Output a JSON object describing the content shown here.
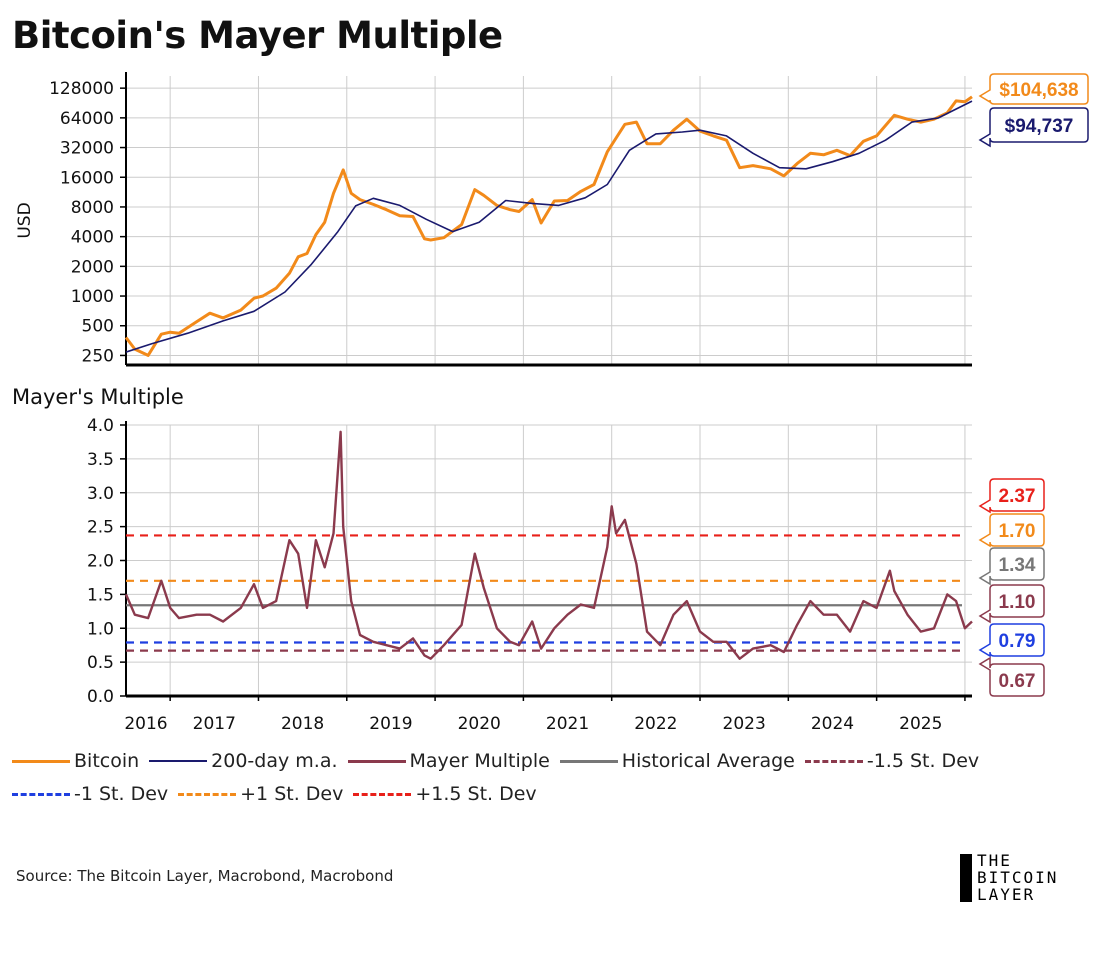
{
  "title": "Bitcoin's Mayer Multiple",
  "source": "Source: The Bitcoin Layer, Macrobond, Macrobond",
  "brand": {
    "line1": "THE",
    "line2": "BITCOIN",
    "line3": "LAYER"
  },
  "colors": {
    "bitcoin": "#f28a1a",
    "ma200": "#1a1a6e",
    "mayer": "#8b3a4d",
    "average": "#777777",
    "minus15": "#8b3a4d",
    "minus1": "#1f3fe0",
    "plus1": "#f28a1a",
    "plus15": "#e8201a",
    "grid": "#cccccc"
  },
  "legend": [
    {
      "label": "Bitcoin",
      "key": "bitcoin",
      "style": "solid"
    },
    {
      "label": "200-day m.a.",
      "key": "ma200",
      "style": "solid"
    },
    {
      "label": "Mayer Multiple",
      "key": "mayer",
      "style": "solid"
    },
    {
      "label": "Historical Average",
      "key": "average",
      "style": "solid"
    },
    {
      "label": "-1.5 St. Dev",
      "key": "minus15",
      "style": "dashed"
    },
    {
      "label": "-1 St. Dev",
      "key": "minus1",
      "style": "dashed"
    },
    {
      "label": "+1 St. Dev",
      "key": "plus1",
      "style": "dashed"
    },
    {
      "label": "+1.5 St. Dev",
      "key": "plus15",
      "style": "dashed"
    }
  ],
  "chart_data": [
    {
      "type": "line",
      "title": "",
      "ylabel": "USD",
      "yscale": "log",
      "ylim": [
        200,
        170000
      ],
      "xlim": [
        2015.5,
        2025.08
      ],
      "yticks": [
        250,
        500,
        1000,
        2000,
        4000,
        8000,
        16000,
        32000,
        64000,
        128000
      ],
      "ytick_labels": [
        "250",
        "500",
        "1000",
        "2000",
        "4000",
        "8000",
        "16000",
        "32000",
        "64000",
        "128000"
      ],
      "series": [
        {
          "name": "Bitcoin",
          "x": [
            2015.5,
            2015.6,
            2015.75,
            2015.9,
            2016.0,
            2016.1,
            2016.3,
            2016.45,
            2016.6,
            2016.8,
            2016.95,
            2017.05,
            2017.2,
            2017.35,
            2017.45,
            2017.55,
            2017.65,
            2017.75,
            2017.85,
            2017.96,
            2018.05,
            2018.15,
            2018.3,
            2018.45,
            2018.6,
            2018.75,
            2018.88,
            2018.95,
            2019.1,
            2019.3,
            2019.45,
            2019.55,
            2019.7,
            2019.85,
            2019.95,
            2020.1,
            2020.2,
            2020.35,
            2020.5,
            2020.65,
            2020.8,
            2020.95,
            2021.05,
            2021.15,
            2021.28,
            2021.4,
            2021.55,
            2021.7,
            2021.85,
            2022.0,
            2022.15,
            2022.3,
            2022.45,
            2022.6,
            2022.8,
            2022.95,
            2023.1,
            2023.25,
            2023.4,
            2023.55,
            2023.7,
            2023.85,
            2024.0,
            2024.2,
            2024.35,
            2024.5,
            2024.65,
            2024.8,
            2024.9,
            2025.0,
            2025.08
          ],
          "values": [
            380,
            290,
            250,
            410,
            430,
            420,
            550,
            670,
            600,
            720,
            950,
            1000,
            1200,
            1700,
            2500,
            2700,
            4200,
            5600,
            11000,
            19000,
            11000,
            9500,
            8500,
            7500,
            6500,
            6400,
            3800,
            3700,
            3900,
            5300,
            12000,
            10500,
            8300,
            7500,
            7200,
            9500,
            5500,
            9200,
            9300,
            11500,
            13500,
            29000,
            40000,
            55000,
            58000,
            35000,
            35000,
            48000,
            62000,
            47000,
            42000,
            38000,
            20000,
            21000,
            19500,
            16500,
            22000,
            28000,
            27000,
            30000,
            26500,
            37000,
            42000,
            68000,
            62000,
            58000,
            62000,
            72000,
            95000,
            93000,
            104638
          ]
        },
        {
          "name": "200-day m.a.",
          "x": [
            2015.5,
            2015.8,
            2016.2,
            2016.6,
            2016.95,
            2017.3,
            2017.6,
            2017.9,
            2018.1,
            2018.3,
            2018.6,
            2018.9,
            2019.2,
            2019.5,
            2019.8,
            2020.1,
            2020.4,
            2020.7,
            2020.95,
            2021.2,
            2021.5,
            2021.8,
            2022.0,
            2022.3,
            2022.6,
            2022.9,
            2023.2,
            2023.5,
            2023.8,
            2024.1,
            2024.4,
            2024.7,
            2025.08
          ],
          "values": [
            270,
            330,
            420,
            560,
            700,
            1100,
            2100,
            4500,
            8200,
            9800,
            8300,
            6000,
            4500,
            5600,
            9300,
            8700,
            8300,
            9900,
            13500,
            30000,
            44000,
            46000,
            48000,
            42000,
            28000,
            20000,
            19500,
            23000,
            28000,
            38000,
            58000,
            64000,
            94737
          ]
        }
      ],
      "annotations": [
        {
          "label": "$104,638",
          "series": "Bitcoin"
        },
        {
          "label": "$94,737",
          "series": "200-day m.a."
        }
      ]
    },
    {
      "type": "line",
      "title": "Mayer's Multiple",
      "ylim": [
        0.0,
        4.0
      ],
      "xlim": [
        2015.5,
        2025.08
      ],
      "yticks": [
        0.0,
        0.5,
        1.0,
        1.5,
        2.0,
        2.5,
        3.0,
        3.5,
        4.0
      ],
      "ytick_labels": [
        "0.0",
        "0.5",
        "1.0",
        "1.5",
        "2.0",
        "2.5",
        "3.0",
        "3.5",
        "4.0"
      ],
      "xticks": [
        2016,
        2017,
        2018,
        2019,
        2020,
        2021,
        2022,
        2023,
        2024,
        2025
      ],
      "xtick_labels": [
        "2016",
        "2017",
        "2018",
        "2019",
        "2020",
        "2021",
        "2022",
        "2023",
        "2024",
        "2025"
      ],
      "series": [
        {
          "name": "Mayer Multiple",
          "x": [
            2015.5,
            2015.6,
            2015.75,
            2015.9,
            2016.0,
            2016.1,
            2016.3,
            2016.45,
            2016.6,
            2016.8,
            2016.95,
            2017.05,
            2017.2,
            2017.35,
            2017.45,
            2017.55,
            2017.65,
            2017.75,
            2017.85,
            2017.93,
            2017.96,
            2018.05,
            2018.15,
            2018.3,
            2018.45,
            2018.6,
            2018.75,
            2018.88,
            2018.95,
            2019.1,
            2019.3,
            2019.45,
            2019.55,
            2019.7,
            2019.85,
            2019.95,
            2020.1,
            2020.2,
            2020.35,
            2020.5,
            2020.65,
            2020.8,
            2020.95,
            2021.0,
            2021.05,
            2021.15,
            2021.28,
            2021.4,
            2021.55,
            2021.7,
            2021.85,
            2022.0,
            2022.15,
            2022.3,
            2022.45,
            2022.6,
            2022.8,
            2022.95,
            2023.1,
            2023.25,
            2023.4,
            2023.55,
            2023.7,
            2023.85,
            2024.0,
            2024.15,
            2024.2,
            2024.35,
            2024.5,
            2024.65,
            2024.8,
            2024.9,
            2025.0,
            2025.08
          ],
          "values": [
            1.5,
            1.2,
            1.15,
            1.7,
            1.3,
            1.15,
            1.2,
            1.2,
            1.1,
            1.3,
            1.65,
            1.3,
            1.4,
            2.3,
            2.1,
            1.3,
            2.3,
            1.9,
            2.4,
            3.9,
            2.5,
            1.4,
            0.9,
            0.8,
            0.75,
            0.7,
            0.85,
            0.6,
            0.55,
            0.75,
            1.05,
            2.1,
            1.6,
            1.0,
            0.8,
            0.75,
            1.1,
            0.7,
            1.0,
            1.2,
            1.35,
            1.3,
            2.2,
            2.8,
            2.4,
            2.6,
            1.95,
            0.95,
            0.75,
            1.2,
            1.4,
            0.95,
            0.8,
            0.8,
            0.55,
            0.7,
            0.75,
            0.65,
            1.05,
            1.4,
            1.2,
            1.2,
            0.95,
            1.4,
            1.3,
            1.85,
            1.55,
            1.2,
            0.95,
            1.0,
            1.5,
            1.4,
            1.0,
            1.1
          ]
        },
        {
          "name": "Historical Average",
          "value": 1.34,
          "label": "1.34"
        },
        {
          "name": "-1.5 St. Dev",
          "value": 0.67,
          "label": "0.67"
        },
        {
          "name": "-1 St. Dev",
          "value": 0.79,
          "label": "0.79"
        },
        {
          "name": "+1 St. Dev",
          "value": 1.7,
          "label": "1.70"
        },
        {
          "name": "+1.5 St. Dev",
          "value": 2.37,
          "label": "2.37"
        }
      ],
      "annotations": [
        {
          "label": "1.10",
          "series": "Mayer Multiple"
        }
      ]
    }
  ]
}
